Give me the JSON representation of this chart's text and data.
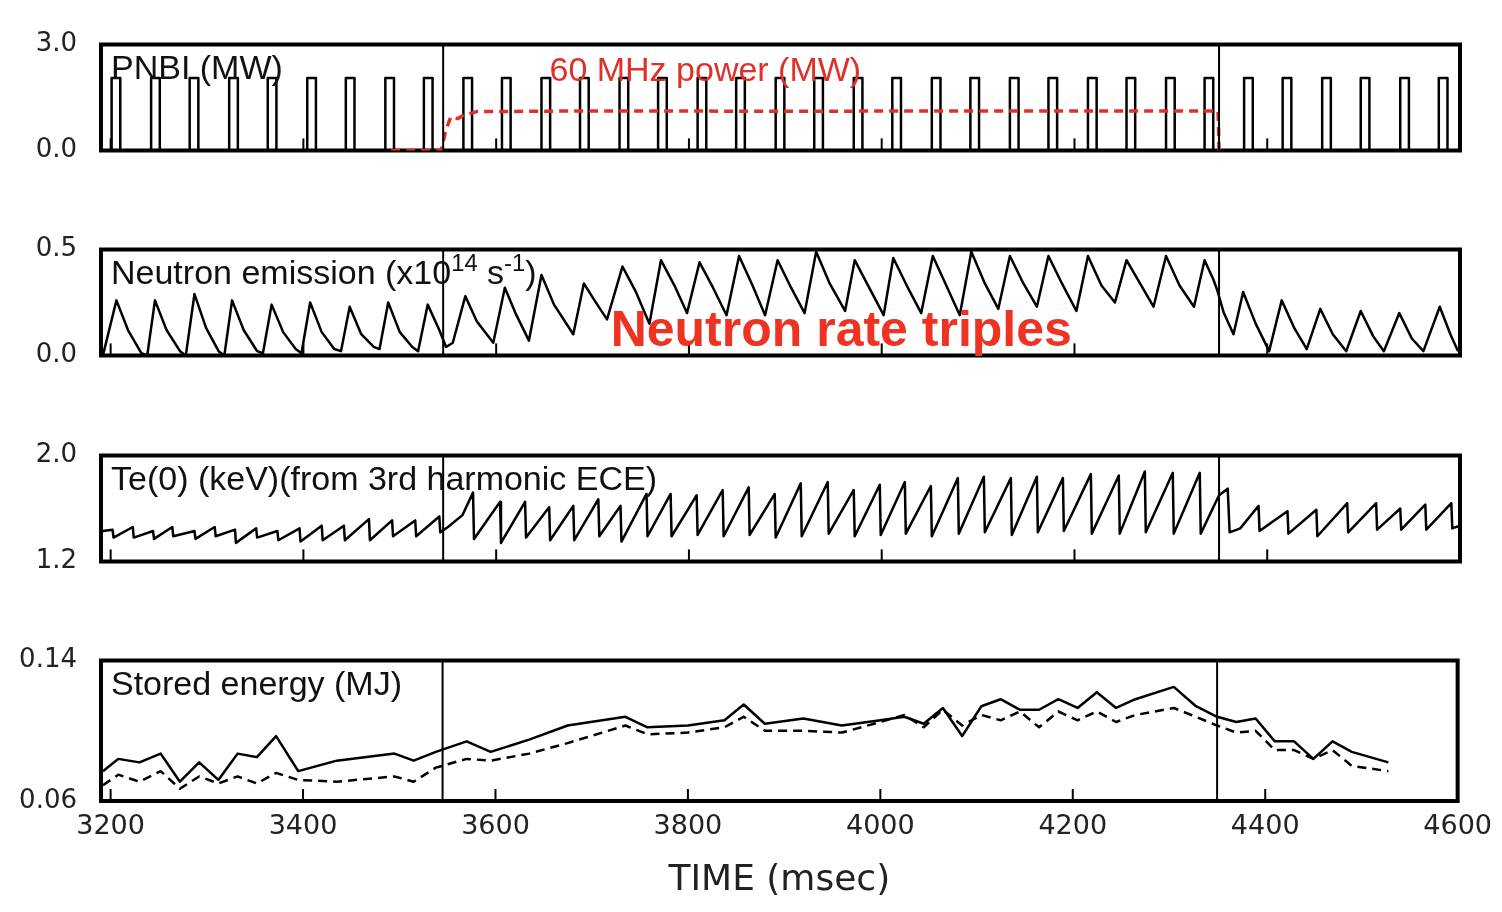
{
  "chart_data": [
    {
      "type": "line",
      "title": "PNBI (MW)",
      "xlim": [
        3190,
        4600
      ],
      "xticks": [
        3200,
        3400,
        3600,
        3800,
        4000,
        4200,
        4400,
        4600
      ],
      "ylim": [
        0,
        3
      ],
      "yticks": [
        {
          "value": 0,
          "label": "0.0"
        },
        {
          "value": 3,
          "label": "3.0"
        }
      ],
      "tick_labels": "y",
      "marker": "none",
      "ref_lines": [
        {
          "axis": "x",
          "value": 3545,
          "color": "#000000"
        },
        {
          "axis": "x",
          "value": 4350,
          "color": "#000000"
        }
      ],
      "series": [
        {
          "color": "#000000",
          "x": [
            3190,
            3201,
            3201,
            3210,
            3210,
            3242,
            3242,
            3251,
            3251,
            3282,
            3282,
            3291,
            3291,
            3323,
            3323,
            3332,
            3332,
            3363,
            3363,
            3372,
            3372,
            3404,
            3404,
            3413,
            3413,
            3444,
            3444,
            3453,
            3453,
            3485,
            3485,
            3494,
            3494,
            3525,
            3525,
            3534,
            3534,
            3566,
            3566,
            3575,
            3575,
            3606,
            3606,
            3615,
            3615,
            3647,
            3647,
            3656,
            3656,
            3687,
            3687,
            3696,
            3696,
            3728,
            3728,
            3737,
            3737,
            3768,
            3768,
            3777,
            3777,
            3809,
            3809,
            3818,
            3818,
            3849,
            3849,
            3858,
            3858,
            3890,
            3890,
            3899,
            3899,
            3930,
            3930,
            3939,
            3939,
            3971,
            3971,
            3980,
            3980,
            4011,
            4011,
            4020,
            4020,
            4052,
            4052,
            4061,
            4061,
            4092,
            4092,
            4101,
            4101,
            4133,
            4133,
            4142,
            4142,
            4173,
            4173,
            4182,
            4182,
            4214,
            4214,
            4223,
            4223,
            4254,
            4254,
            4263,
            4263,
            4295,
            4295,
            4304,
            4304,
            4335,
            4335,
            4344,
            4344,
            4376,
            4376,
            4385,
            4385,
            4416,
            4416,
            4425,
            4425,
            4457,
            4457,
            4466,
            4466,
            4497,
            4497,
            4506,
            4506,
            4538,
            4538,
            4547,
            4547,
            4578,
            4578,
            4587,
            4587,
            4600
          ],
          "values": [
            0,
            0,
            2.05,
            2.05,
            0,
            0,
            2.05,
            2.05,
            0,
            0,
            2.05,
            2.05,
            0,
            0,
            2.05,
            2.05,
            0,
            0,
            2.05,
            2.05,
            0,
            0,
            2.05,
            2.05,
            0,
            0,
            2.05,
            2.05,
            0,
            0,
            2.05,
            2.05,
            0,
            0,
            2.05,
            2.05,
            0,
            0,
            2.05,
            2.05,
            0,
            0,
            2.05,
            2.05,
            0,
            0,
            2.05,
            2.05,
            0,
            0,
            2.05,
            2.05,
            0,
            0,
            2.05,
            2.05,
            0,
            0,
            2.05,
            2.05,
            0,
            0,
            2.05,
            2.05,
            0,
            0,
            2.05,
            2.05,
            0,
            0,
            2.05,
            2.05,
            0,
            0,
            2.05,
            2.05,
            0,
            0,
            2.05,
            2.05,
            0,
            0,
            2.05,
            2.05,
            0,
            0,
            2.05,
            2.05,
            0,
            0,
            2.05,
            2.05,
            0,
            0,
            2.05,
            2.05,
            0,
            0,
            2.05,
            2.05,
            0,
            0,
            2.05,
            2.05,
            0,
            0,
            2.05,
            2.05,
            0,
            0,
            2.05,
            2.05,
            0,
            0,
            2.05,
            2.05,
            0,
            0,
            2.05,
            2.05,
            0,
            0,
            2.05,
            2.05,
            0,
            0,
            2.05,
            2.05,
            0,
            0,
            2.05,
            2.05,
            0,
            0,
            2.05,
            2.05,
            0,
            0,
            2.05,
            2.05,
            0,
            0
          ]
        },
        {
          "name": "60 MHz power (MW)",
          "color": "#e0302a",
          "line_style": "dashed",
          "x": [
            3491,
            3543,
            3548,
            3553,
            3560,
            3566,
            3580,
            3700,
            3900,
            4100,
            4300,
            4349,
            4350
          ],
          "values": [
            0,
            0,
            0.6,
            0.95,
            0.9,
            1.0,
            1.1,
            1.12,
            1.11,
            1.12,
            1.12,
            1.12,
            0
          ]
        }
      ]
    },
    {
      "type": "line",
      "title": "Neutron emission (x10$^{14}$ s$^{-1}$)",
      "xlim": [
        3190,
        4600
      ],
      "xticks": [
        3200,
        3400,
        3600,
        3800,
        4000,
        4200,
        4400,
        4600
      ],
      "ylim": [
        0,
        0.5
      ],
      "yticks": [
        {
          "value": 0,
          "label": "0.0"
        },
        0.5
      ],
      "tick_labels": "y",
      "marker": "none",
      "ref_lines": [
        {
          "axis": "x",
          "value": 3545,
          "color": "#000000"
        },
        {
          "axis": "x",
          "value": 4350,
          "color": "#000000"
        }
      ],
      "annotations": [
        "Neutron rate triples"
      ],
      "series": [
        {
          "color": "#000000",
          "x": [
            3192,
            3206,
            3218,
            3232,
            3238,
            3246,
            3258,
            3272,
            3278,
            3287,
            3299,
            3312,
            3318,
            3326,
            3338,
            3352,
            3358,
            3367,
            3379,
            3392,
            3398,
            3407,
            3419,
            3432,
            3439,
            3448,
            3460,
            3473,
            3479,
            3488,
            3500,
            3513,
            3519,
            3529,
            3541,
            3548,
            3555,
            3568,
            3580,
            3597,
            3609,
            3620,
            3634,
            3647,
            3660,
            3680,
            3691,
            3702,
            3715,
            3731,
            3745,
            3759,
            3771,
            3785,
            3798,
            3811,
            3825,
            3839,
            3852,
            3866,
            3879,
            3892,
            3906,
            3920,
            3932,
            3946,
            3962,
            3972,
            3987,
            4002,
            4012,
            4026,
            4041,
            4053,
            4067,
            4081,
            4093,
            4107,
            4121,
            4133,
            4147,
            4161,
            4173,
            4187,
            4202,
            4214,
            4228,
            4242,
            4254,
            4268,
            4282,
            4295,
            4309,
            4324,
            4335,
            4344,
            4348,
            4355,
            4365,
            4375,
            4388,
            4402,
            4415,
            4428,
            4441,
            4455,
            4468,
            4482,
            4497,
            4510,
            4521,
            4537,
            4550,
            4562,
            4579,
            4590,
            4598
          ],
          "values": [
            0.0,
            0.26,
            0.12,
            0.01,
            0.0,
            0.26,
            0.12,
            0.02,
            0.0,
            0.29,
            0.13,
            0.02,
            0.0,
            0.26,
            0.12,
            0.02,
            0.01,
            0.24,
            0.11,
            0.03,
            0.01,
            0.25,
            0.11,
            0.03,
            0.02,
            0.23,
            0.1,
            0.04,
            0.03,
            0.25,
            0.11,
            0.04,
            0.02,
            0.24,
            0.12,
            0.04,
            0.06,
            0.28,
            0.16,
            0.06,
            0.32,
            0.2,
            0.07,
            0.38,
            0.24,
            0.1,
            0.34,
            0.26,
            0.17,
            0.42,
            0.3,
            0.15,
            0.45,
            0.33,
            0.2,
            0.44,
            0.32,
            0.19,
            0.47,
            0.33,
            0.19,
            0.45,
            0.32,
            0.2,
            0.49,
            0.34,
            0.21,
            0.45,
            0.32,
            0.19,
            0.46,
            0.33,
            0.2,
            0.47,
            0.33,
            0.19,
            0.49,
            0.34,
            0.22,
            0.47,
            0.34,
            0.23,
            0.47,
            0.34,
            0.21,
            0.47,
            0.33,
            0.25,
            0.45,
            0.34,
            0.23,
            0.47,
            0.33,
            0.23,
            0.45,
            0.36,
            0.31,
            0.2,
            0.1,
            0.3,
            0.15,
            0.02,
            0.26,
            0.13,
            0.03,
            0.22,
            0.1,
            0.02,
            0.21,
            0.09,
            0.02,
            0.2,
            0.08,
            0.02,
            0.23,
            0.1,
            0.02
          ]
        }
      ]
    },
    {
      "type": "line",
      "title": "Te(0) (keV)(from 3rd harmonic ECE)",
      "xlim": [
        3190,
        4600
      ],
      "xticks": [
        3200,
        3400,
        3600,
        3800,
        4000,
        4200,
        4400,
        4600
      ],
      "ylim": [
        1.2,
        2.0
      ],
      "yticks": [
        1.2,
        {
          "value": 2.0,
          "label": "2.0"
        }
      ],
      "tick_labels": "y",
      "marker": "none",
      "ref_lines": [
        {
          "axis": "x",
          "value": 3545,
          "color": "#000000"
        },
        {
          "axis": "x",
          "value": 4350,
          "color": "#000000"
        }
      ],
      "series": [
        {
          "color": "#000000",
          "x": [
            3192,
            3202,
            3203,
            3223,
            3224,
            3244,
            3245,
            3264,
            3265,
            3287,
            3288,
            3308,
            3309,
            3329,
            3330,
            3351,
            3352,
            3373,
            3374,
            3396,
            3397,
            3419,
            3420,
            3442,
            3443,
            3468,
            3469,
            3492,
            3493,
            3516,
            3517,
            3541,
            3542,
            3550,
            3565,
            3576,
            3577,
            3604,
            3605,
            3630,
            3631,
            3655,
            3656,
            3680,
            3681,
            3706,
            3707,
            3729,
            3730,
            3756,
            3757,
            3781,
            3782,
            3808,
            3809,
            3835,
            3836,
            3862,
            3863,
            3889,
            3890,
            3916,
            3917,
            3944,
            3945,
            3971,
            3972,
            3998,
            3999,
            4024,
            4025,
            4051,
            4052,
            4079,
            4080,
            4106,
            4107,
            4134,
            4135,
            4161,
            4162,
            4188,
            4189,
            4217,
            4218,
            4246,
            4247,
            4273,
            4274,
            4302,
            4303,
            4330,
            4331,
            4350,
            4359,
            4361,
            4372,
            4391,
            4392,
            4421,
            4422,
            4451,
            4452,
            4483,
            4484,
            4513,
            4514,
            4538,
            4539,
            4564,
            4565,
            4591,
            4592,
            4600
          ],
          "values": [
            1.43,
            1.44,
            1.38,
            1.46,
            1.38,
            1.43,
            1.37,
            1.46,
            1.39,
            1.43,
            1.37,
            1.46,
            1.39,
            1.44,
            1.34,
            1.45,
            1.38,
            1.43,
            1.36,
            1.45,
            1.35,
            1.47,
            1.36,
            1.47,
            1.36,
            1.52,
            1.36,
            1.51,
            1.39,
            1.51,
            1.39,
            1.54,
            1.42,
            1.46,
            1.55,
            1.72,
            1.37,
            1.65,
            1.34,
            1.65,
            1.38,
            1.61,
            1.36,
            1.62,
            1.36,
            1.67,
            1.39,
            1.62,
            1.35,
            1.71,
            1.39,
            1.71,
            1.39,
            1.7,
            1.4,
            1.74,
            1.39,
            1.76,
            1.4,
            1.71,
            1.38,
            1.79,
            1.39,
            1.8,
            1.41,
            1.74,
            1.39,
            1.78,
            1.4,
            1.8,
            1.41,
            1.77,
            1.39,
            1.83,
            1.41,
            1.84,
            1.42,
            1.83,
            1.4,
            1.84,
            1.42,
            1.83,
            1.43,
            1.86,
            1.41,
            1.85,
            1.41,
            1.88,
            1.42,
            1.87,
            1.41,
            1.87,
            1.41,
            1.7,
            1.75,
            1.42,
            1.45,
            1.62,
            1.43,
            1.58,
            1.41,
            1.59,
            1.39,
            1.64,
            1.42,
            1.64,
            1.44,
            1.6,
            1.44,
            1.63,
            1.44,
            1.64,
            1.45,
            1.47
          ]
        }
      ]
    },
    {
      "type": "line",
      "title": "Stored energy (MJ)",
      "xlabel": "TIME (msec)",
      "xlim": [
        3190,
        4600
      ],
      "xticks": [
        3200,
        3400,
        3600,
        3800,
        4000,
        4200,
        4400,
        4600
      ],
      "ylim": [
        0.06,
        0.14
      ],
      "yticks": [
        0.06,
        0.14
      ],
      "marker": "none",
      "ref_lines": [
        {
          "axis": "x",
          "value": 3545,
          "color": "#000000"
        },
        {
          "axis": "x",
          "value": 4350,
          "color": "#000000"
        }
      ],
      "x": [
        3192,
        3208,
        3230,
        3252,
        3272,
        3292,
        3312,
        3332,
        3352,
        3372,
        3395,
        3435,
        3495,
        3515,
        3538,
        3570,
        3595,
        3635,
        3675,
        3735,
        3758,
        3800,
        3838,
        3858,
        3880,
        3920,
        3960,
        4000,
        4025,
        4045,
        4065,
        4085,
        4105,
        4125,
        4145,
        4165,
        4185,
        4205,
        4225,
        4245,
        4265,
        4305,
        4328,
        4350,
        4370,
        4390,
        4410,
        4430,
        4450,
        4470,
        4490,
        4528
      ],
      "series": [
        {
          "color": "#000000",
          "values": [
            0.077,
            0.084,
            0.082,
            0.087,
            0.071,
            0.082,
            0.072,
            0.087,
            0.085,
            0.097,
            0.077,
            0.083,
            0.087,
            0.083,
            0.088,
            0.094,
            0.088,
            0.095,
            0.103,
            0.108,
            0.102,
            0.103,
            0.106,
            0.115,
            0.104,
            0.107,
            0.103,
            0.106,
            0.108,
            0.104,
            0.113,
            0.097,
            0.114,
            0.118,
            0.112,
            0.112,
            0.118,
            0.113,
            0.122,
            0.113,
            0.118,
            0.125,
            0.114,
            0.108,
            0.105,
            0.107,
            0.094,
            0.094,
            0.084,
            0.094,
            0.088,
            0.082
          ]
        },
        {
          "color": "#000000",
          "line_style": "dashed",
          "values": [
            0.069,
            0.075,
            0.071,
            0.077,
            0.067,
            0.074,
            0.07,
            0.074,
            0.07,
            0.076,
            0.072,
            0.071,
            0.074,
            0.071,
            0.079,
            0.084,
            0.083,
            0.087,
            0.093,
            0.103,
            0.098,
            0.099,
            0.102,
            0.108,
            0.1,
            0.1,
            0.099,
            0.105,
            0.109,
            0.102,
            0.112,
            0.103,
            0.109,
            0.106,
            0.111,
            0.102,
            0.111,
            0.106,
            0.111,
            0.105,
            0.109,
            0.113,
            0.108,
            0.103,
            0.099,
            0.1,
            0.089,
            0.089,
            0.084,
            0.089,
            0.08,
            0.077
          ]
        }
      ]
    }
  ]
}
